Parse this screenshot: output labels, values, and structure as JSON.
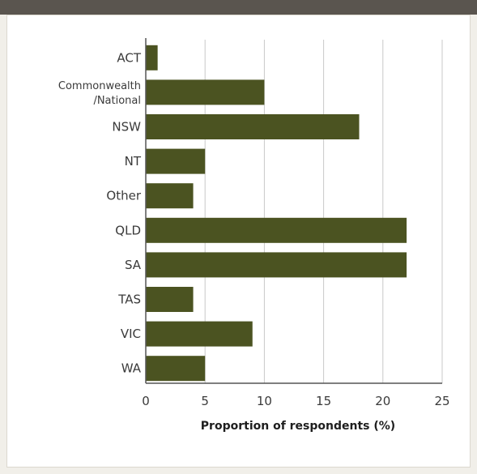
{
  "chart_data": {
    "type": "bar",
    "orientation": "horizontal",
    "categories": [
      "ACT",
      "Commonwealth\n/National",
      "NSW",
      "NT",
      "Other",
      "QLD",
      "SA",
      "TAS",
      "VIC",
      "WA"
    ],
    "values": [
      1,
      10,
      18,
      5,
      4,
      22,
      22,
      4,
      9,
      5
    ],
    "title": "",
    "xlabel": "Proportion of respondents (%)",
    "ylabel": "",
    "xlim": [
      0,
      25
    ],
    "xticks": [
      0,
      5,
      10,
      15,
      20,
      25
    ],
    "grid": "vertical",
    "legend": "none",
    "colors": {
      "bar": "#4b5321",
      "grid": "#c9c9c9",
      "axis": "#555555",
      "background": "#ffffff",
      "frame": "#f1efe9",
      "top_bar": "#5a554f"
    }
  }
}
